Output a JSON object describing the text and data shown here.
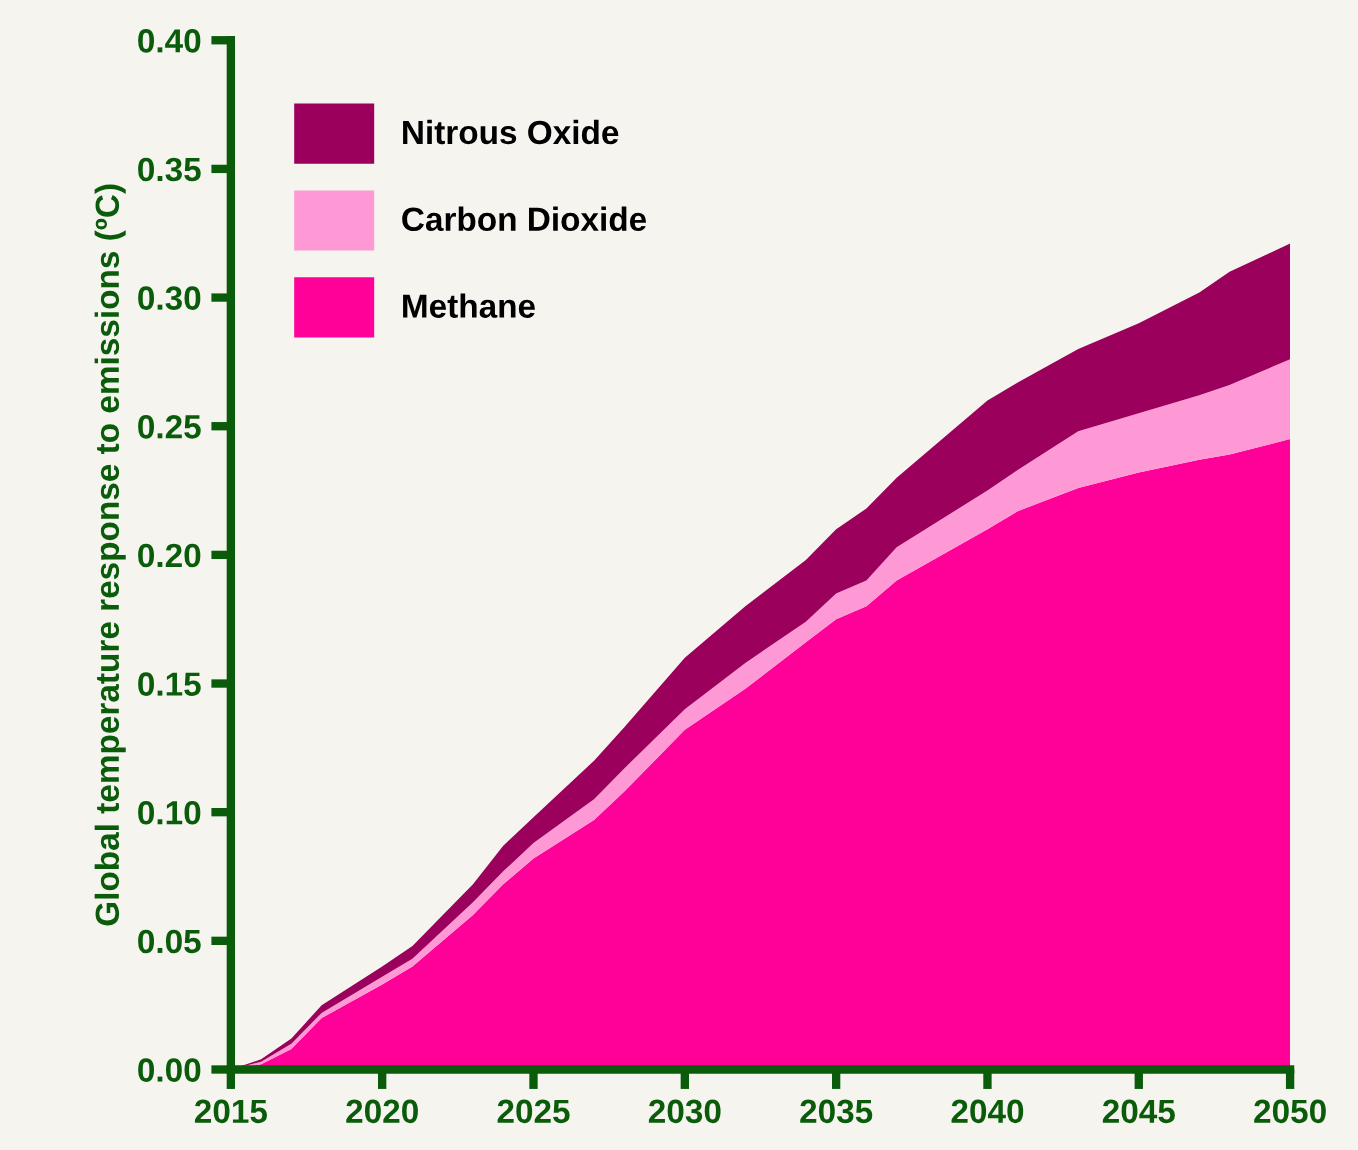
{
  "chart_data": {
    "type": "area",
    "stacked": true,
    "ylabel": "Global temperature response to emissions (ºC)",
    "x": [
      2015,
      2016,
      2017,
      2018,
      2020,
      2021,
      2023,
      2024,
      2025,
      2027,
      2028,
      2030,
      2032,
      2034,
      2035,
      2036,
      2037,
      2040,
      2041,
      2043,
      2045,
      2047,
      2048,
      2050
    ],
    "series": [
      {
        "name": "Methane",
        "color": "#ff0099",
        "values": [
          0,
          0.002,
          0.008,
          0.02,
          0.033,
          0.04,
          0.06,
          0.072,
          0.082,
          0.097,
          0.108,
          0.132,
          0.148,
          0.166,
          0.175,
          0.18,
          0.19,
          0.21,
          0.217,
          0.226,
          0.232,
          0.237,
          0.239,
          0.245
        ]
      },
      {
        "name": "Carbon Dioxide",
        "color": "#ff99d6",
        "values": [
          0,
          0.001,
          0.002,
          0.002,
          0.003,
          0.003,
          0.005,
          0.005,
          0.006,
          0.008,
          0.009,
          0.008,
          0.01,
          0.008,
          0.01,
          0.01,
          0.013,
          0.015,
          0.016,
          0.022,
          0.023,
          0.025,
          0.027,
          0.031
        ]
      },
      {
        "name": "Nitrous Oxide",
        "color": "#9b005d",
        "values": [
          0,
          0.001,
          0.002,
          0.003,
          0.004,
          0.005,
          0.007,
          0.01,
          0.01,
          0.015,
          0.016,
          0.02,
          0.022,
          0.024,
          0.025,
          0.028,
          0.027,
          0.035,
          0.034,
          0.032,
          0.035,
          0.04,
          0.044,
          0.045
        ]
      }
    ],
    "xlim": [
      2015,
      2050
    ],
    "xticks": [
      2015,
      2020,
      2025,
      2030,
      2035,
      2040,
      2045,
      2050
    ],
    "ylim": [
      0,
      0.4
    ],
    "yticks": [
      {
        "value": 0,
        "label": "0.00"
      },
      {
        "value": 0.05,
        "label": "0.05"
      },
      {
        "value": 0.1,
        "label": "0.10"
      },
      {
        "value": 0.15,
        "label": "0.15"
      },
      {
        "value": 0.2,
        "label": "0.20"
      },
      {
        "value": 0.25,
        "label": "0.25"
      },
      {
        "value": 0.3,
        "label": "0.30"
      },
      {
        "value": 0.35,
        "label": "0.35"
      },
      {
        "value": 0.4,
        "label": "0.40"
      }
    ],
    "grid": false,
    "legend": "top left"
  }
}
